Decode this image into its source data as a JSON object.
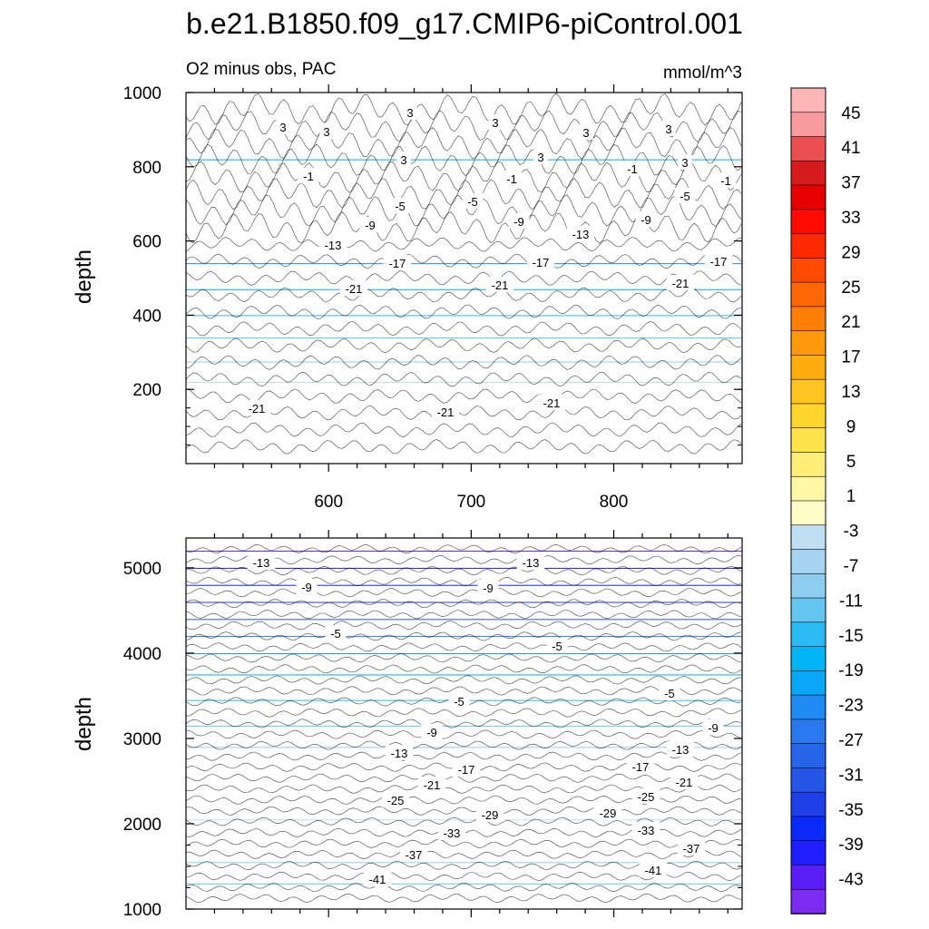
{
  "chart_data": [
    {
      "type": "contour",
      "panel": "top",
      "title": "b.e21.B1850.f09_g17.CMIP6-piControl.001",
      "left_label": "O2 minus obs, PAC",
      "right_label": "mmol/m^3",
      "ylabel": "depth",
      "xlabel": "",
      "ylim": [
        1000,
        0
      ],
      "xlim": [
        500,
        890
      ],
      "y_ticks": [
        "200",
        "400",
        "600",
        "800",
        "1000"
      ],
      "x_ticks": [
        "600",
        "700",
        "800"
      ],
      "contour_labels": [
        "3",
        "3",
        "3",
        "3",
        "3",
        "3",
        "3",
        "3",
        "3",
        "-1",
        "-1",
        "-1",
        "-1",
        "-5",
        "-5",
        "-5",
        "-9",
        "-9",
        "-9",
        "-13",
        "-13",
        "-17",
        "-17",
        "-17",
        "-21",
        "-21",
        "-21",
        "-21",
        "-21",
        "-21"
      ],
      "layers": [
        {
          "depth_top": 0,
          "depth_bottom": 220,
          "value": 3
        },
        {
          "depth_top": 220,
          "depth_bottom": 275,
          "value": -3
        },
        {
          "depth_top": 275,
          "depth_bottom": 340,
          "value": -7
        },
        {
          "depth_top": 340,
          "depth_bottom": 400,
          "value": -11
        },
        {
          "depth_top": 400,
          "depth_bottom": 470,
          "value": -15
        },
        {
          "depth_top": 470,
          "depth_bottom": 540,
          "value": -19
        },
        {
          "depth_top": 540,
          "depth_bottom": 820,
          "value": -23
        },
        {
          "depth_top": 820,
          "depth_bottom": 1000,
          "value": -19
        }
      ]
    },
    {
      "type": "contour",
      "panel": "bottom",
      "ylabel": "depth",
      "xlabel": "",
      "ylim": [
        5350,
        1000
      ],
      "xlim": [
        500,
        890
      ],
      "y_ticks": [
        "1000",
        "2000",
        "3000",
        "4000",
        "5000"
      ],
      "contour_labels": [
        "-13",
        "-13",
        "-9",
        "-9",
        "-5",
        "-5",
        "-5",
        "-5",
        "-9",
        "-9",
        "-13",
        "-13",
        "-17",
        "-17",
        "-21",
        "-21",
        "-25",
        "-25",
        "-29",
        "-29",
        "-33",
        "-33",
        "-37",
        "-37",
        "-41",
        "-41"
      ],
      "layers": [
        {
          "depth_top": 1000,
          "depth_bottom": 1300,
          "value": -15
        },
        {
          "depth_top": 1300,
          "depth_bottom": 1550,
          "value": -11
        },
        {
          "depth_top": 1550,
          "depth_bottom": 2050,
          "value": -7
        },
        {
          "depth_top": 2050,
          "depth_bottom": 2900,
          "value": -3
        },
        {
          "depth_top": 2900,
          "depth_bottom": 3150,
          "value": -7
        },
        {
          "depth_top": 3150,
          "depth_bottom": 3450,
          "value": -11
        },
        {
          "depth_top": 3450,
          "depth_bottom": 3750,
          "value": -15
        },
        {
          "depth_top": 3750,
          "depth_bottom": 4000,
          "value": -19
        },
        {
          "depth_top": 4000,
          "depth_bottom": 4200,
          "value": -23
        },
        {
          "depth_top": 4200,
          "depth_bottom": 4400,
          "value": -27
        },
        {
          "depth_top": 4400,
          "depth_bottom": 4600,
          "value": -31
        },
        {
          "depth_top": 4600,
          "depth_bottom": 4800,
          "value": -35
        },
        {
          "depth_top": 4800,
          "depth_bottom": 5000,
          "value": -39
        },
        {
          "depth_top": 5000,
          "depth_bottom": 5200,
          "value": -41
        },
        {
          "depth_top": 5200,
          "depth_bottom": 5350,
          "value": -45
        }
      ]
    }
  ],
  "colorbar": {
    "tick_labels": [
      "45",
      "41",
      "37",
      "33",
      "29",
      "25",
      "21",
      "17",
      "13",
      "9",
      "5",
      "1",
      "-3",
      "-7",
      "-11",
      "-15",
      "-19",
      "-23",
      "-27",
      "-31",
      "-35",
      "-39",
      "-43"
    ],
    "colors": [
      "#7a2cf0",
      "#5a1ef5",
      "#1e1eff",
      "#0a2afa",
      "#1f3fe8",
      "#2455e6",
      "#2566e8",
      "#2a78ee",
      "#1e8cf2",
      "#0aa7f8",
      "#00b4f6",
      "#2cbaf5",
      "#63c6ef",
      "#8fcdee",
      "#a6d3ef",
      "#bfe0f2",
      "#fffcc8",
      "#fff7a6",
      "#ffee78",
      "#ffe34c",
      "#ffd52e",
      "#ffc41f",
      "#ffad0e",
      "#ff980a",
      "#ff7f06",
      "#ff6604",
      "#ff4a02",
      "#ff2a00",
      "#ff0a00",
      "#e60000",
      "#d51b1b",
      "#e94f50",
      "#f79b9e",
      "#ffb6b6"
    ]
  }
}
